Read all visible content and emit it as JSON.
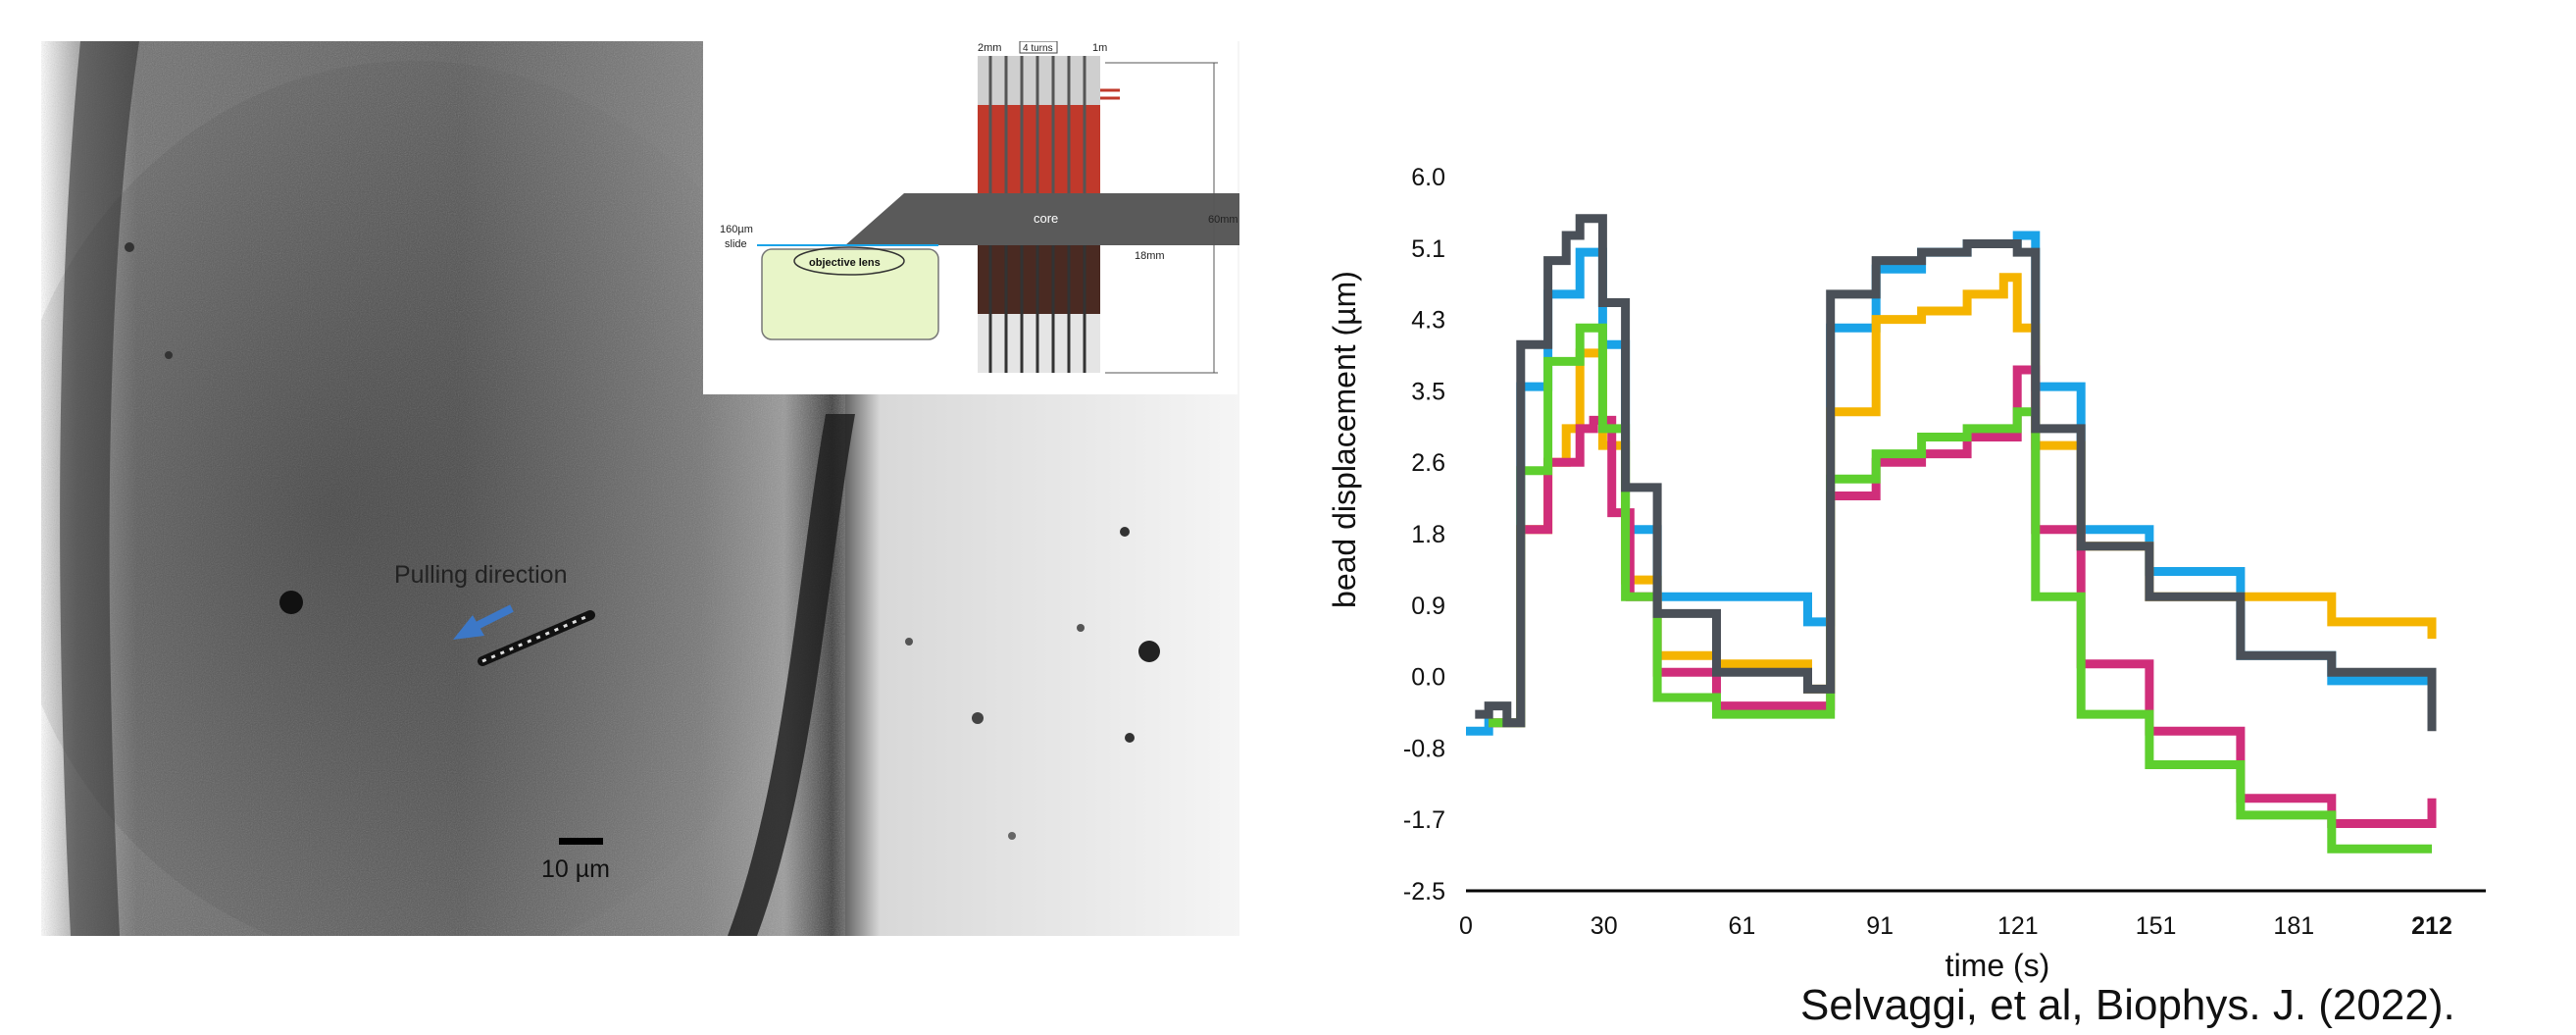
{
  "micrograph": {
    "annotation": "Pulling direction",
    "scale_label": "10 µm",
    "arrow_color": "#3c78c8"
  },
  "inset": {
    "label_2mm": "2mm",
    "label_turns": "4 turns",
    "label_1m": "1m",
    "label_core": "core",
    "label_60mm": "60mm",
    "label_18mm": "18mm",
    "label_160um": "160µm",
    "label_slide": "slide",
    "label_lens": "objective lens",
    "coil_color": "#c0392b",
    "lens_fill": "#e8f5c8"
  },
  "chart_data": {
    "type": "line",
    "xlabel": "time (s)",
    "ylabel": "bead displacement (µm)",
    "xticks": [
      "0",
      "30",
      "61",
      "91",
      "121",
      "151",
      "181",
      "212"
    ],
    "yticks": [
      "6.0",
      "5.1",
      "4.3",
      "3.5",
      "2.6",
      "1.8",
      "0.9",
      "0.0",
      "-0.8",
      "-1.7",
      "-2.5"
    ],
    "xlim": [
      0,
      212
    ],
    "ylim": [
      -2.5,
      6.0
    ],
    "grid": false,
    "series": [
      {
        "color": "#1aa3e8",
        "x": [
          0,
          5,
          9,
          12,
          18,
          25,
          30,
          35,
          42,
          55,
          75,
          80,
          90,
          100,
          110,
          121,
          125,
          135,
          150,
          170,
          190,
          212
        ],
        "y": [
          -0.6,
          -0.5,
          -0.5,
          3.5,
          4.6,
          5.1,
          4.0,
          1.8,
          1.0,
          1.0,
          0.7,
          4.2,
          4.9,
          5.1,
          5.2,
          5.3,
          3.5,
          1.8,
          1.3,
          0.3,
          0.0,
          -0.1
        ]
      },
      {
        "color": "#f5b400",
        "x": [
          5,
          9,
          12,
          18,
          22,
          25,
          30,
          35,
          42,
          55,
          75,
          80,
          90,
          100,
          110,
          118,
          121,
          125,
          135,
          150,
          170,
          190,
          212
        ],
        "y": [
          -0.5,
          -0.5,
          1.8,
          2.6,
          3.0,
          3.9,
          2.8,
          1.2,
          0.3,
          0.2,
          -0.1,
          3.2,
          4.3,
          4.4,
          4.6,
          4.8,
          4.2,
          2.8,
          1.6,
          1.0,
          1.0,
          0.7,
          0.5
        ]
      },
      {
        "color": "#d02e7a",
        "x": [
          5,
          9,
          12,
          18,
          25,
          28,
          32,
          36,
          42,
          55,
          75,
          80,
          90,
          100,
          110,
          121,
          125,
          135,
          150,
          170,
          190,
          212
        ],
        "y": [
          -0.5,
          -0.5,
          1.8,
          2.6,
          3.0,
          3.1,
          2.0,
          1.0,
          0.1,
          -0.3,
          -0.3,
          2.2,
          2.6,
          2.7,
          2.9,
          3.7,
          1.8,
          0.2,
          -0.6,
          -1.4,
          -1.7,
          -1.4
        ]
      },
      {
        "color": "#5ecf2e",
        "x": [
          5,
          9,
          12,
          18,
          25,
          30,
          35,
          42,
          55,
          75,
          80,
          90,
          100,
          110,
          121,
          125,
          135,
          150,
          170,
          190,
          212
        ],
        "y": [
          -0.5,
          -0.5,
          2.5,
          3.8,
          4.2,
          3.0,
          1.0,
          -0.2,
          -0.4,
          -0.4,
          2.4,
          2.7,
          2.9,
          3.0,
          3.2,
          1.0,
          -0.4,
          -1.0,
          -1.6,
          -2.0,
          -2.0
        ]
      },
      {
        "color": "#4a5058",
        "x": [
          2,
          5,
          9,
          12,
          18,
          22,
          25,
          30,
          35,
          42,
          55,
          75,
          80,
          90,
          100,
          110,
          115,
          121,
          125,
          135,
          150,
          170,
          190,
          212
        ],
        "y": [
          -0.4,
          -0.3,
          -0.5,
          4.0,
          5.0,
          5.3,
          5.5,
          4.5,
          2.3,
          0.8,
          0.1,
          -0.1,
          4.6,
          5.0,
          5.1,
          5.2,
          5.2,
          5.1,
          3.0,
          1.6,
          1.0,
          0.3,
          0.1,
          -0.6
        ]
      }
    ]
  },
  "citation": "Selvaggi, et al, Biophys. J. (2022)."
}
